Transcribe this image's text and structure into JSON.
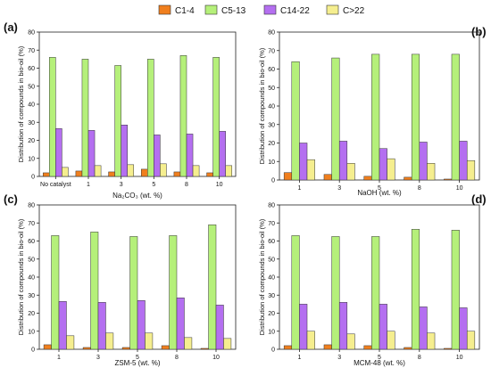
{
  "legend": {
    "items": [
      {
        "name": "C1-4",
        "color": "#f07f1e"
      },
      {
        "name": "C5-13",
        "color": "#b5f07a"
      },
      {
        "name": "C14-22",
        "color": "#b46ff0"
      },
      {
        "name": "C>22",
        "color": "#f5ee8f"
      }
    ]
  },
  "chart_data": [
    {
      "type": "bar",
      "panel_label": "(a)",
      "xlabel": "Na₂CO₃ (wt. %)",
      "ylabel": "Distribution of compounds in bio-oil (%)",
      "ylim": [
        0,
        80
      ],
      "yticks": [
        0,
        10,
        20,
        30,
        40,
        50,
        60,
        70,
        80
      ],
      "categories": [
        "No catalyst",
        "1",
        "3",
        "5",
        "8",
        "10"
      ],
      "series": [
        {
          "name": "C1-4",
          "values": [
            2,
            3,
            2.5,
            4,
            2.5,
            2
          ]
        },
        {
          "name": "C5-13",
          "values": [
            66,
            65,
            61.5,
            65,
            67,
            66
          ]
        },
        {
          "name": "C14-22",
          "values": [
            26.5,
            25.5,
            28.5,
            23,
            23.5,
            25
          ]
        },
        {
          "name": "C>22",
          "values": [
            5,
            6,
            6.5,
            7,
            6,
            6
          ]
        }
      ]
    },
    {
      "type": "bar",
      "panel_label": "(b)",
      "xlabel": "NaOH (wt. %)",
      "ylabel": "Distribution of compounds in bio-oil (%)",
      "ylim": [
        0,
        80
      ],
      "yticks": [
        0,
        10,
        20,
        30,
        40,
        50,
        60,
        70,
        80
      ],
      "categories": [
        "1",
        "3",
        "5",
        "8",
        "10"
      ],
      "series": [
        {
          "name": "C1-4",
          "values": [
            4,
            3,
            2,
            1.5,
            0.5
          ]
        },
        {
          "name": "C5-13",
          "values": [
            64,
            66,
            68,
            68,
            68
          ]
        },
        {
          "name": "C14-22",
          "values": [
            20,
            21,
            17,
            20.5,
            21
          ]
        },
        {
          "name": "C>22",
          "values": [
            11,
            9,
            11.5,
            9,
            10.5
          ]
        }
      ]
    },
    {
      "type": "bar",
      "panel_label": "(c)",
      "xlabel": "ZSM-5 (wt. %)",
      "ylabel": "Distribution of compounds in bio-oil (%)",
      "ylim": [
        0,
        80
      ],
      "yticks": [
        0,
        10,
        20,
        30,
        40,
        50,
        60,
        70,
        80
      ],
      "categories": [
        "1",
        "3",
        "5",
        "8",
        "10"
      ],
      "series": [
        {
          "name": "C1-4",
          "values": [
            2.5,
            1,
            1,
            2,
            0.5
          ]
        },
        {
          "name": "C5-13",
          "values": [
            63,
            65,
            62.5,
            63,
            69
          ]
        },
        {
          "name": "C14-22",
          "values": [
            26.5,
            26,
            27,
            28.5,
            24.5
          ]
        },
        {
          "name": "C>22",
          "values": [
            7.5,
            9,
            9,
            6.5,
            6
          ]
        }
      ]
    },
    {
      "type": "bar",
      "panel_label": "(d)",
      "xlabel": "MCM-48 (wt. %)",
      "ylabel": "Distribution of compounds in bio-oil (%)",
      "ylim": [
        0,
        80
      ],
      "yticks": [
        0,
        10,
        20,
        30,
        40,
        50,
        60,
        70,
        80
      ],
      "categories": [
        "1",
        "3",
        "5",
        "8",
        "10"
      ],
      "series": [
        {
          "name": "C1-4",
          "values": [
            2,
            2.5,
            2,
            1,
            0.5
          ]
        },
        {
          "name": "C5-13",
          "values": [
            63,
            62.5,
            62.5,
            66.5,
            66
          ]
        },
        {
          "name": "C14-22",
          "values": [
            25,
            26,
            25,
            23.5,
            23
          ]
        },
        {
          "name": "C>22",
          "values": [
            10,
            8.5,
            10,
            9,
            10
          ]
        }
      ]
    }
  ]
}
